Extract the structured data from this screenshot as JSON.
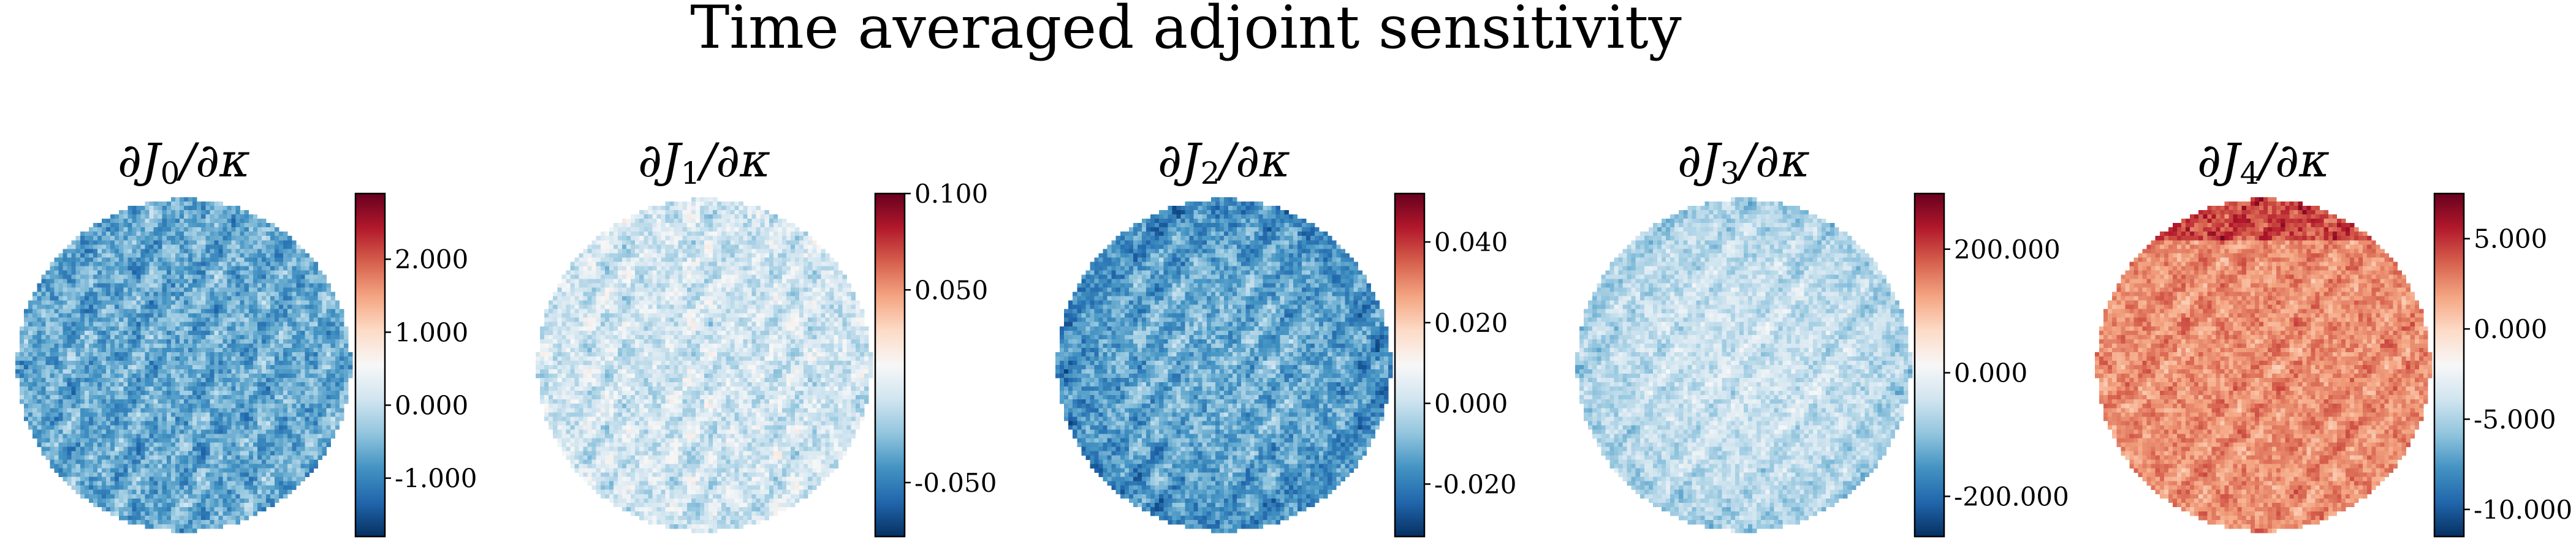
{
  "figure": {
    "title": "Time averaged adjoint sensitivity"
  },
  "chart_data": [
    {
      "type": "heatmap",
      "title": "∂J₀/∂κ",
      "title_parts": {
        "pre": "∂J",
        "sub": "0",
        "post": "/∂κ"
      },
      "colormap": "RdBu_r",
      "colorbar": {
        "range": [
          -1.8,
          2.9
        ],
        "ticks": [
          -1.0,
          0.0,
          1.0,
          2.0
        ],
        "tick_labels": [
          "-1.000",
          "0.000",
          "1.000",
          "2.000"
        ]
      },
      "field": {
        "domain": "disk",
        "grid": 78,
        "mean": -0.65,
        "spread": 0.45,
        "edge_trend": 0.0,
        "top_red": 0.0
      }
    },
    {
      "type": "heatmap",
      "title": "∂J₁/∂κ",
      "title_parts": {
        "pre": "∂J",
        "sub": "1",
        "post": "/∂κ"
      },
      "colormap": "RdBu_r",
      "colorbar": {
        "range": [
          -0.078,
          0.1
        ],
        "ticks": [
          -0.05,
          0.05,
          0.1
        ],
        "tick_labels": [
          "-0.050",
          "0.050",
          "0.100"
        ]
      },
      "field": {
        "domain": "disk",
        "grid": 78,
        "mean": -0.006,
        "spread": 0.016,
        "edge_trend": 0.0,
        "top_red": 0.0
      }
    },
    {
      "type": "heatmap",
      "title": "∂J₂/∂κ",
      "title_parts": {
        "pre": "∂J",
        "sub": "2",
        "post": "/∂κ"
      },
      "colormap": "RdBu_r",
      "colorbar": {
        "range": [
          -0.033,
          0.052
        ],
        "ticks": [
          -0.02,
          0.0,
          0.02,
          0.04
        ],
        "tick_labels": [
          "-0.020",
          "0.000",
          "0.020",
          "0.040"
        ]
      },
      "field": {
        "domain": "disk",
        "grid": 78,
        "mean": -0.011,
        "spread": 0.008,
        "edge_trend": -0.008,
        "top_red": 0.0
      }
    },
    {
      "type": "heatmap",
      "title": "∂J₃/∂κ",
      "title_parts": {
        "pre": "∂J",
        "sub": "3",
        "post": "/∂κ"
      },
      "colormap": "RdBu_r",
      "colorbar": {
        "range": [
          -265,
          290
        ],
        "ticks": [
          -200,
          0,
          200
        ],
        "tick_labels": [
          "-200.000",
          "0.000",
          "200.000"
        ]
      },
      "field": {
        "domain": "disk",
        "grid": 78,
        "mean": -45,
        "spread": 40,
        "edge_trend": -40,
        "top_red": 0.0
      }
    },
    {
      "type": "heatmap",
      "title": "∂J₄/∂κ",
      "title_parts": {
        "pre": "∂J",
        "sub": "4",
        "post": "/∂κ"
      },
      "colormap": "RdBu_r",
      "colorbar": {
        "range": [
          -11.5,
          7.5
        ],
        "ticks": [
          -10,
          -5,
          0,
          5
        ],
        "tick_labels": [
          "-10.000",
          "-5.000",
          "0.000",
          "5.000"
        ]
      },
      "field": {
        "domain": "disk",
        "grid": 78,
        "mean": 2.4,
        "spread": 1.3,
        "edge_trend": 0.0,
        "top_red": 2.5
      }
    }
  ]
}
